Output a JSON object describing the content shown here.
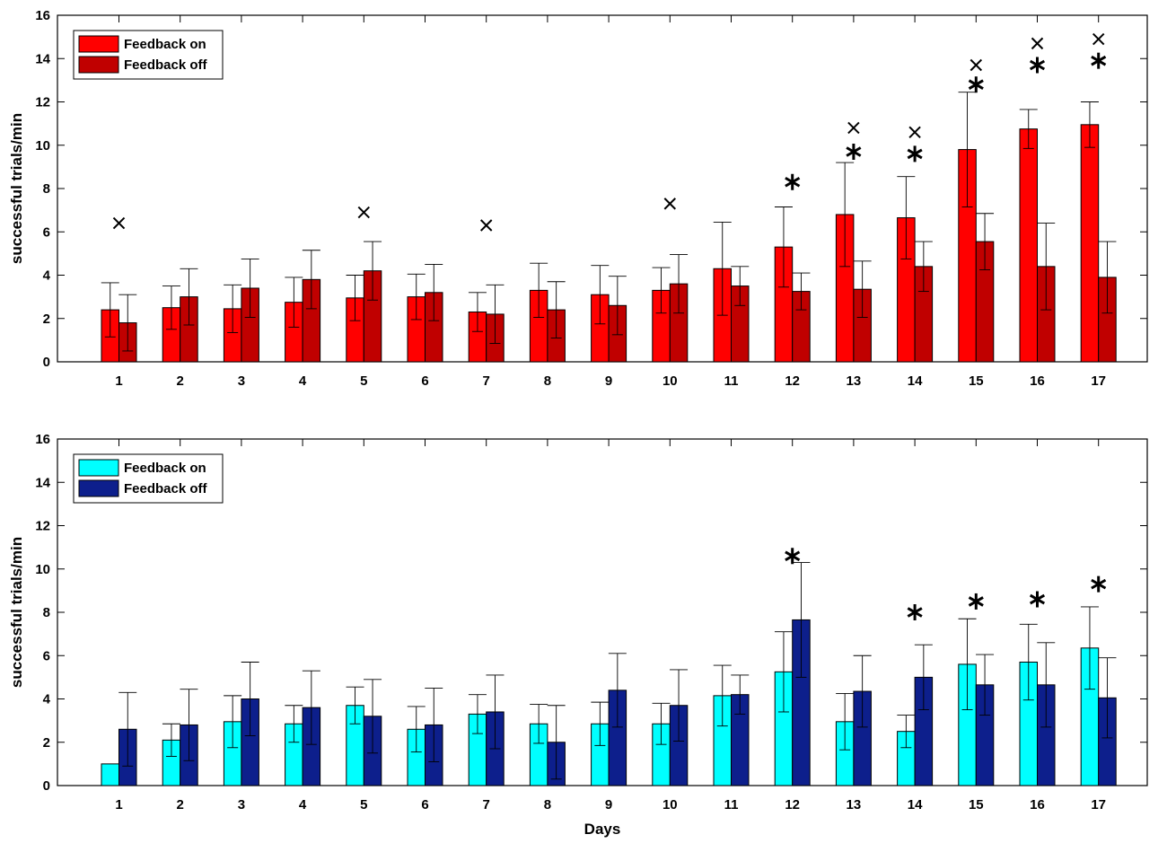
{
  "chart_data": [
    {
      "type": "bar",
      "panel": "top",
      "xlabel": "",
      "ylabel": "successful trials/min",
      "ylim": [
        0,
        16
      ],
      "yticks": [
        0,
        2,
        4,
        6,
        8,
        10,
        12,
        14,
        16
      ],
      "categories": [
        "1",
        "2",
        "3",
        "4",
        "5",
        "6",
        "7",
        "8",
        "9",
        "10",
        "11",
        "12",
        "13",
        "14",
        "15",
        "16",
        "17"
      ],
      "legend_position": "top-left",
      "series": [
        {
          "name": "Feedback on",
          "color": "#ff0000",
          "values": [
            2.4,
            2.5,
            2.45,
            2.75,
            2.95,
            3.0,
            2.3,
            3.3,
            3.1,
            3.3,
            4.3,
            5.3,
            6.8,
            6.65,
            9.8,
            10.75,
            10.95
          ],
          "errors": [
            1.25,
            1.0,
            1.1,
            1.15,
            1.05,
            1.05,
            0.9,
            1.25,
            1.35,
            1.05,
            2.15,
            1.85,
            2.4,
            1.9,
            2.65,
            0.9,
            1.05
          ]
        },
        {
          "name": "Feedback off",
          "color": "#c00000",
          "values": [
            1.8,
            3.0,
            3.4,
            3.8,
            4.2,
            3.2,
            2.2,
            2.4,
            2.6,
            3.6,
            3.5,
            3.25,
            3.35,
            4.4,
            5.55,
            4.4,
            3.9
          ],
          "errors": [
            1.3,
            1.3,
            1.35,
            1.35,
            1.35,
            1.3,
            1.35,
            1.3,
            1.35,
            1.35,
            0.9,
            0.85,
            1.3,
            1.15,
            1.3,
            2.0,
            1.65
          ]
        }
      ],
      "markers": [
        {
          "day": "1",
          "symbol": "×",
          "y": 6.4
        },
        {
          "day": "5",
          "symbol": "×",
          "y": 6.9
        },
        {
          "day": "7",
          "symbol": "×",
          "y": 6.3
        },
        {
          "day": "10",
          "symbol": "×",
          "y": 7.3
        },
        {
          "day": "12",
          "symbol": "*",
          "y": 8.3
        },
        {
          "day": "13",
          "symbol": "*",
          "y": 9.7
        },
        {
          "day": "13",
          "symbol": "×",
          "y": 10.8
        },
        {
          "day": "14",
          "symbol": "*",
          "y": 9.6
        },
        {
          "day": "14",
          "symbol": "×",
          "y": 10.6
        },
        {
          "day": "15",
          "symbol": "*",
          "y": 12.8
        },
        {
          "day": "15",
          "symbol": "×",
          "y": 13.7
        },
        {
          "day": "16",
          "symbol": "*",
          "y": 13.7
        },
        {
          "day": "16",
          "symbol": "×",
          "y": 14.7
        },
        {
          "day": "17",
          "symbol": "*",
          "y": 13.9
        },
        {
          "day": "17",
          "symbol": "×",
          "y": 14.9
        }
      ]
    },
    {
      "type": "bar",
      "panel": "bottom",
      "xlabel": "Days",
      "ylabel": "successful trials/min",
      "ylim": [
        0,
        16
      ],
      "yticks": [
        0,
        2,
        4,
        6,
        8,
        10,
        12,
        14,
        16
      ],
      "categories": [
        "1",
        "2",
        "3",
        "4",
        "5",
        "6",
        "7",
        "8",
        "9",
        "10",
        "11",
        "12",
        "13",
        "14",
        "15",
        "16",
        "17"
      ],
      "legend_position": "top-left",
      "series": [
        {
          "name": "Feedback on",
          "color": "#00ffff",
          "values": [
            1.0,
            2.1,
            2.95,
            2.85,
            3.7,
            2.6,
            3.3,
            2.85,
            2.85,
            2.85,
            4.15,
            5.25,
            2.95,
            2.5,
            5.6,
            5.7,
            6.35
          ],
          "errors": [
            0,
            0.75,
            1.2,
            0.85,
            0.85,
            1.05,
            0.9,
            0.9,
            1.0,
            0.95,
            1.4,
            1.85,
            1.3,
            0.75,
            2.1,
            1.75,
            1.9
          ]
        },
        {
          "name": "Feedback off",
          "color": "#0d1f8c",
          "values": [
            2.6,
            2.8,
            4.0,
            3.6,
            3.2,
            2.8,
            3.4,
            2.0,
            4.4,
            3.7,
            4.2,
            7.65,
            4.35,
            5.0,
            4.65,
            4.65,
            4.05
          ],
          "errors": [
            1.7,
            1.65,
            1.7,
            1.7,
            1.7,
            1.7,
            1.7,
            1.7,
            1.7,
            1.65,
            0.9,
            2.65,
            1.65,
            1.5,
            1.4,
            1.95,
            1.85
          ]
        }
      ],
      "markers": [
        {
          "day": "12",
          "symbol": "*",
          "y": 10.6
        },
        {
          "day": "14",
          "symbol": "*",
          "y": 8.0
        },
        {
          "day": "15",
          "symbol": "*",
          "y": 8.5
        },
        {
          "day": "16",
          "symbol": "*",
          "y": 8.6
        },
        {
          "day": "17",
          "symbol": "*",
          "y": 9.3
        }
      ]
    }
  ]
}
